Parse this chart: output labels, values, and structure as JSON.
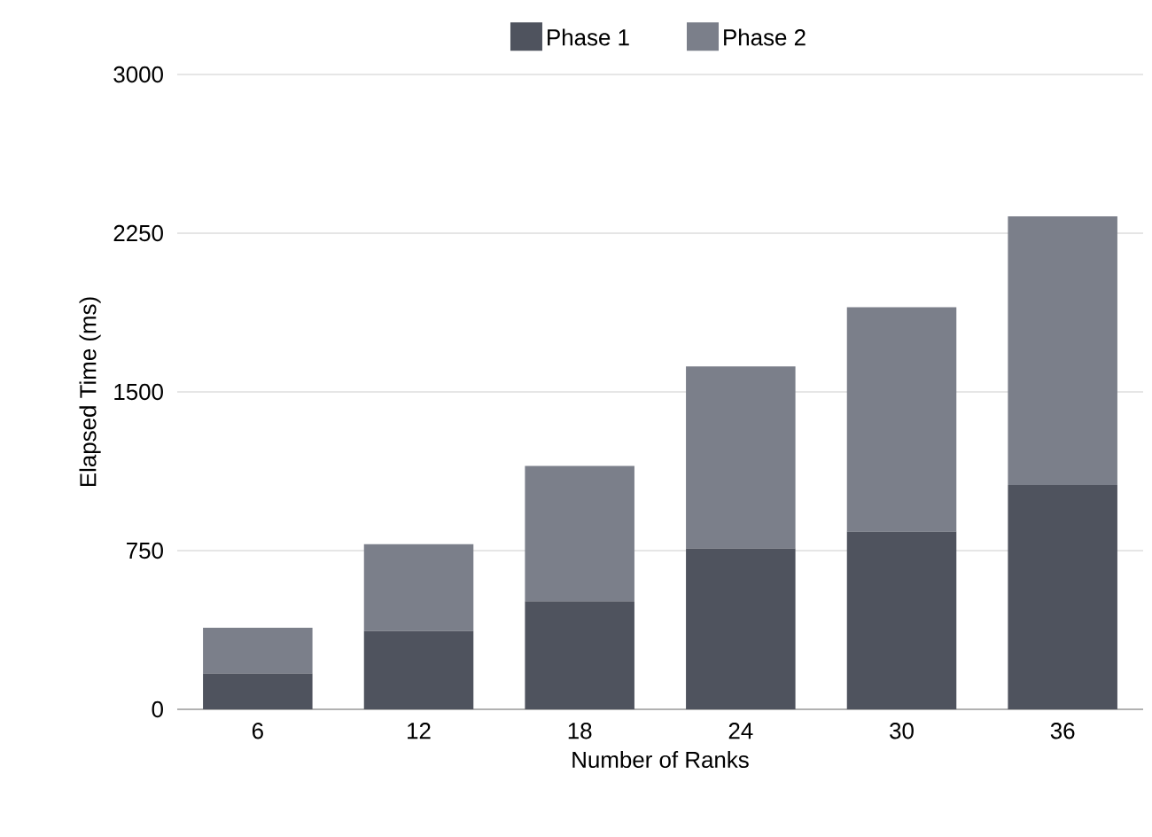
{
  "chart_data": {
    "type": "bar",
    "stacked": true,
    "xlabel": "Number of Ranks",
    "ylabel": "Elapsed Time (ms)",
    "categories": [
      "6",
      "12",
      "18",
      "24",
      "30",
      "36"
    ],
    "series": [
      {
        "name": "Phase 1",
        "color": "#4f535e",
        "values": [
          170,
          370,
          510,
          760,
          840,
          1060
        ]
      },
      {
        "name": "Phase 2",
        "color": "#7b7f8a",
        "values": [
          215,
          410,
          640,
          860,
          1060,
          1270
        ]
      }
    ],
    "ylim": [
      0,
      3000
    ],
    "yticks": [
      0,
      750,
      1500,
      2250,
      3000
    ],
    "grid": "y",
    "legend": "top"
  }
}
